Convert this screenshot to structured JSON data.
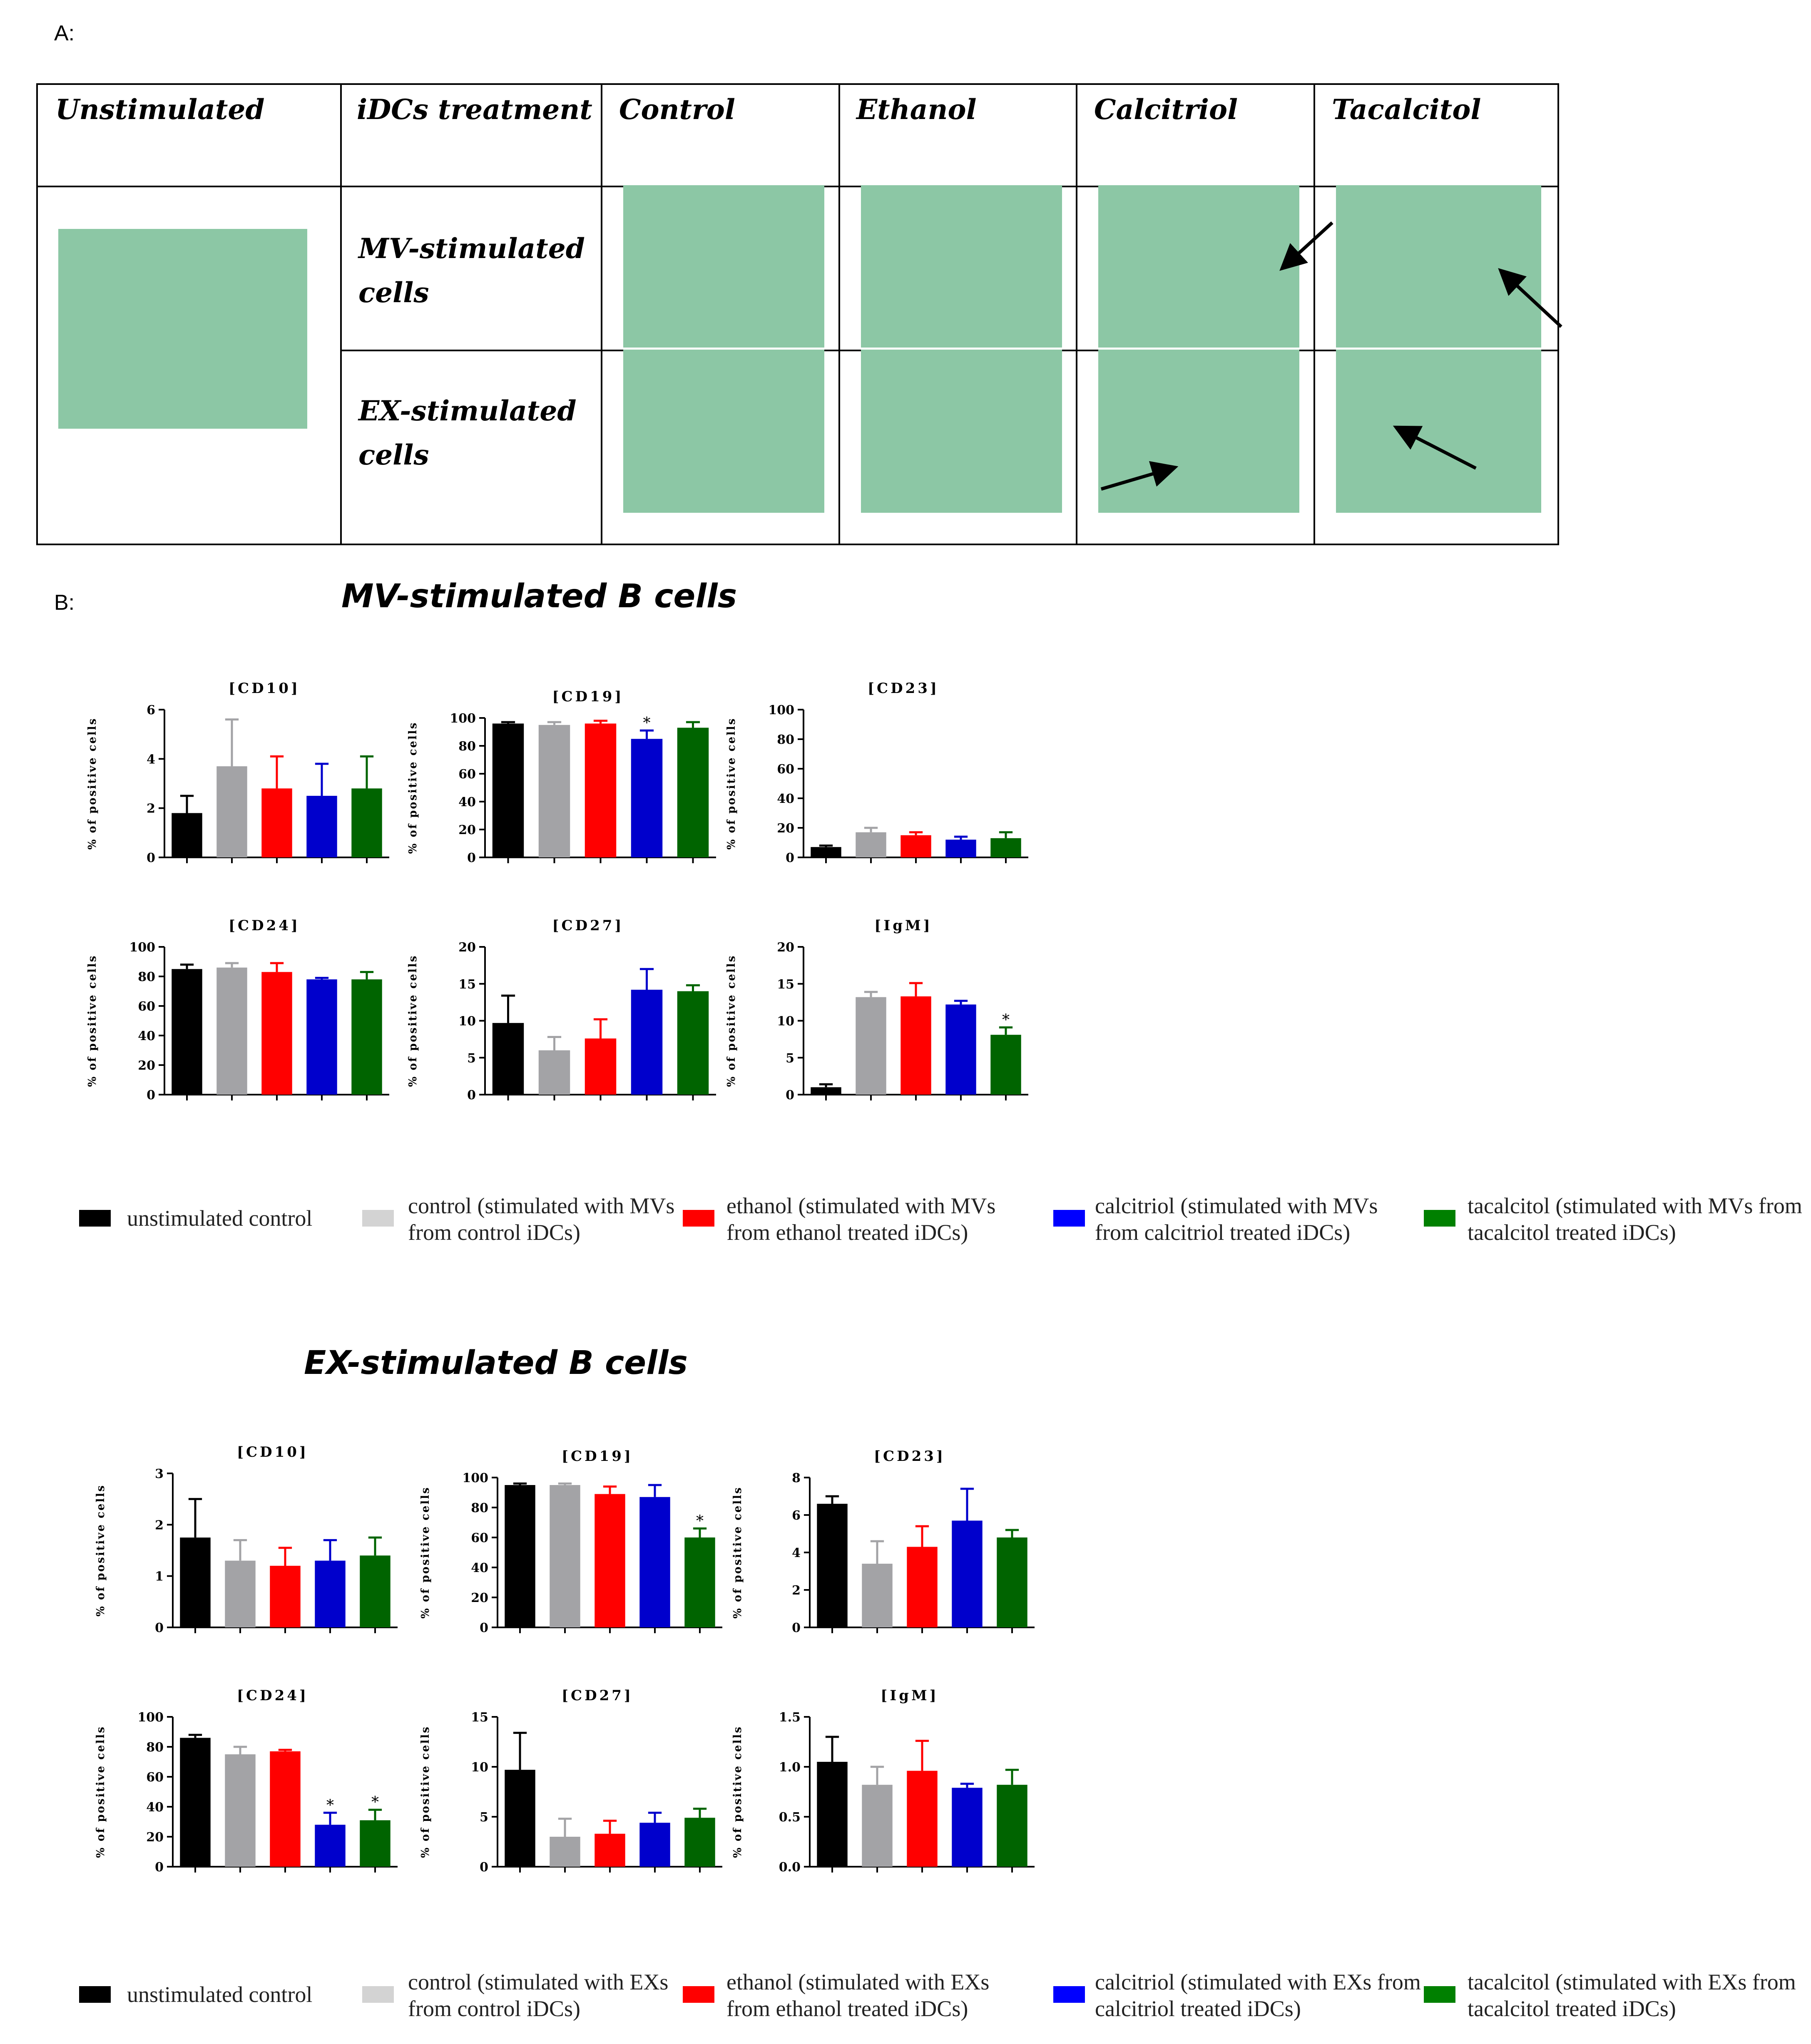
{
  "panel_a_label": "A:",
  "panel_b_label": "B:",
  "table": {
    "headers": [
      "Unstimulated",
      "iDCs treatment",
      "Control",
      "Ethanol",
      "Calcitriol",
      "Tacalcitol"
    ],
    "row_labels": [
      "MV-stimulated cells",
      "EX-stimulated cells"
    ]
  },
  "colors": {
    "unstimulated": "#000000",
    "control": "#a3a3a6",
    "ethanol": "#ff0000",
    "calcitriol": "#0000cc",
    "tacalcitol": "#006400",
    "legend_control": "#d3d3d3"
  },
  "sections": [
    {
      "title": "MV-stimulated B cells"
    },
    {
      "title": "EX-stimulated B cells"
    }
  ],
  "legends": [
    {
      "items": [
        {
          "label": "unstimulated control",
          "color": "#000000"
        },
        {
          "label": "control (stimulated with MVs from control iDCs)",
          "color": "#d3d3d3"
        },
        {
          "label": "ethanol (stimulated with MVs from ethanol treated iDCs)",
          "color": "#ff0000"
        },
        {
          "label": "calcitriol (stimulated with MVs from calcitriol treated iDCs)",
          "color": "#0000ff"
        },
        {
          "label": "tacalcitol (stimulated with MVs from tacalcitol treated iDCs)",
          "color": "#008000"
        }
      ]
    },
    {
      "items": [
        {
          "label": "unstimulated control",
          "color": "#000000"
        },
        {
          "label": "control (stimulated with EXs from control iDCs)",
          "color": "#d3d3d3"
        },
        {
          "label": "ethanol (stimulated with EXs from ethanol treated iDCs)",
          "color": "#ff0000"
        },
        {
          "label": "calcitriol (stimulated with EXs from calcitriol treated iDCs)",
          "color": "#0000ff"
        },
        {
          "label": "tacalcitol (stimulated with EXs from tacalcitol treated iDCs)",
          "color": "#008000"
        }
      ]
    }
  ],
  "chart_data": [
    {
      "type": "bar",
      "group": "MV-stimulated B cells",
      "title": "[CD10]",
      "ylabel": "% of positive cells",
      "ylim": [
        0,
        6
      ],
      "yticks": [
        "0",
        "2",
        "4",
        "6"
      ],
      "values": [
        1.8,
        3.7,
        2.8,
        2.5,
        2.8
      ],
      "errors": [
        0.7,
        1.9,
        1.3,
        1.3,
        1.3
      ],
      "significant": [
        false,
        false,
        false,
        false,
        false
      ]
    },
    {
      "type": "bar",
      "group": "MV-stimulated B cells",
      "title": "[CD19]",
      "ylabel": "% of positive cells",
      "ylim": [
        0,
        100
      ],
      "yticks": [
        "0",
        "20",
        "40",
        "60",
        "80",
        "100"
      ],
      "values": [
        96,
        95,
        96,
        85,
        93
      ],
      "errors": [
        1,
        2,
        2,
        6,
        4
      ],
      "significant": [
        false,
        false,
        false,
        true,
        false
      ]
    },
    {
      "type": "bar",
      "group": "MV-stimulated B cells",
      "title": "[CD23]",
      "ylabel": "% of positive cells",
      "ylim": [
        0,
        100
      ],
      "yticks": [
        "0",
        "20",
        "40",
        "60",
        "80",
        "100"
      ],
      "values": [
        7,
        17,
        15,
        12,
        13
      ],
      "errors": [
        1,
        3,
        2,
        2,
        4
      ],
      "significant": [
        false,
        false,
        false,
        false,
        false
      ]
    },
    {
      "type": "bar",
      "group": "MV-stimulated B cells",
      "title": "[CD24]",
      "ylabel": "% of positive cells",
      "ylim": [
        0,
        100
      ],
      "yticks": [
        "0",
        "20",
        "40",
        "60",
        "80",
        "100"
      ],
      "values": [
        85,
        86,
        83,
        78,
        78
      ],
      "errors": [
        3,
        3,
        6,
        1,
        5
      ],
      "significant": [
        false,
        false,
        false,
        false,
        false
      ]
    },
    {
      "type": "bar",
      "group": "MV-stimulated B cells",
      "title": "[CD27]",
      "ylabel": "% of positive cells",
      "ylim": [
        0,
        20
      ],
      "yticks": [
        "0",
        "5",
        "10",
        "15",
        "20"
      ],
      "values": [
        9.7,
        6,
        7.6,
        14.2,
        14
      ],
      "errors": [
        3.7,
        1.8,
        2.6,
        2.8,
        0.8
      ],
      "significant": [
        false,
        false,
        false,
        false,
        false
      ]
    },
    {
      "type": "bar",
      "group": "MV-stimulated B cells",
      "title": "[IgM]",
      "ylabel": "% of positive cells",
      "ylim": [
        0,
        20
      ],
      "yticks": [
        "0",
        "5",
        "10",
        "15",
        "20"
      ],
      "values": [
        1,
        13.2,
        13.3,
        12.2,
        8.1
      ],
      "errors": [
        0.4,
        0.7,
        1.8,
        0.5,
        1
      ],
      "significant": [
        false,
        false,
        false,
        false,
        true
      ]
    },
    {
      "type": "bar",
      "group": "EX-stimulated B cells",
      "title": "[CD10]",
      "ylabel": "% of positive cells",
      "ylim": [
        0,
        3
      ],
      "yticks": [
        "0",
        "1",
        "2",
        "3"
      ],
      "values": [
        1.75,
        1.3,
        1.2,
        1.3,
        1.4
      ],
      "errors": [
        0.75,
        0.4,
        0.35,
        0.4,
        0.35
      ],
      "significant": [
        false,
        false,
        false,
        false,
        false
      ]
    },
    {
      "type": "bar",
      "group": "EX-stimulated B cells",
      "title": "[CD19]",
      "ylabel": "% of positive cells",
      "ylim": [
        0,
        100
      ],
      "yticks": [
        "0",
        "20",
        "40",
        "60",
        "80",
        "100"
      ],
      "values": [
        95,
        95,
        89,
        87,
        60
      ],
      "errors": [
        1,
        1,
        5,
        8,
        6
      ],
      "significant": [
        false,
        false,
        false,
        false,
        true
      ]
    },
    {
      "type": "bar",
      "group": "EX-stimulated B cells",
      "title": "[CD23]",
      "ylabel": "% of positive cells",
      "ylim": [
        0,
        8
      ],
      "yticks": [
        "0",
        "2",
        "4",
        "6",
        "8"
      ],
      "values": [
        6.6,
        3.4,
        4.3,
        5.7,
        4.8
      ],
      "errors": [
        0.4,
        1.2,
        1.1,
        1.7,
        0.4
      ],
      "significant": [
        false,
        false,
        false,
        false,
        false
      ]
    },
    {
      "type": "bar",
      "group": "EX-stimulated B cells",
      "title": "[CD24]",
      "ylabel": "% of positive cells",
      "ylim": [
        0,
        100
      ],
      "yticks": [
        "0",
        "20",
        "40",
        "60",
        "80",
        "100"
      ],
      "values": [
        86,
        75,
        77,
        28,
        31
      ],
      "errors": [
        2,
        5,
        1,
        8,
        7
      ],
      "significant": [
        false,
        false,
        false,
        true,
        true
      ]
    },
    {
      "type": "bar",
      "group": "EX-stimulated B cells",
      "title": "[CD27]",
      "ylabel": "% of positive cells",
      "ylim": [
        0,
        15
      ],
      "yticks": [
        "0",
        "5",
        "10",
        "15"
      ],
      "values": [
        9.7,
        3,
        3.3,
        4.4,
        4.9
      ],
      "errors": [
        3.7,
        1.8,
        1.3,
        1,
        0.9
      ],
      "significant": [
        false,
        false,
        false,
        false,
        false
      ]
    },
    {
      "type": "bar",
      "group": "EX-stimulated B cells",
      "title": "[IgM]",
      "ylabel": "% of positive cells",
      "ylim": [
        0,
        1.5
      ],
      "yticks": [
        "0.0",
        "0.5",
        "1.0",
        "1.5"
      ],
      "values": [
        1.05,
        0.82,
        0.96,
        0.79,
        0.82
      ],
      "errors": [
        0.25,
        0.18,
        0.3,
        0.04,
        0.15
      ],
      "significant": [
        false,
        false,
        false,
        false,
        false
      ]
    }
  ]
}
